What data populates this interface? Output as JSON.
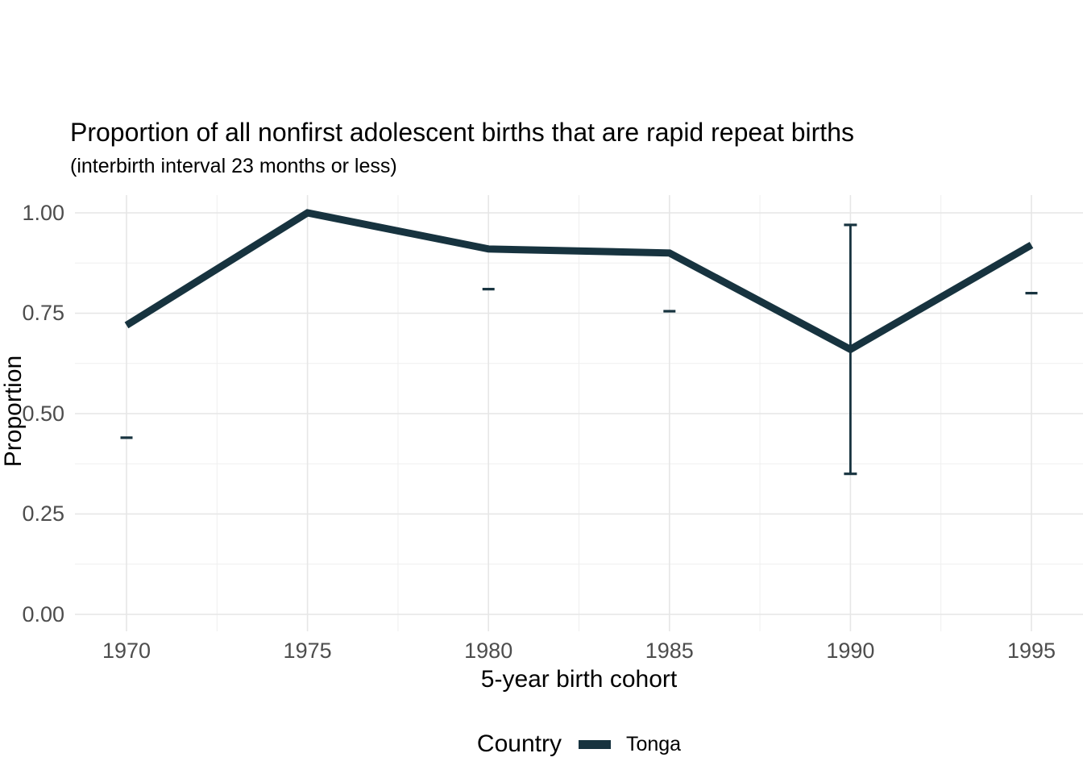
{
  "chart": {
    "title": "Proportion of all nonfirst adolescent births that are rapid repeat births",
    "subtitle": "(interbirth interval 23 months or less)",
    "x_axis_label": "5-year birth cohort",
    "y_axis_label": "Proportion",
    "legend": {
      "title": "Country",
      "entries": [
        {
          "label": "Tonga",
          "color": "#17333f"
        }
      ]
    }
  },
  "chart_data": {
    "type": "line",
    "title": "Proportion of all nonfirst adolescent births that are rapid repeat births",
    "subtitle": "(interbirth interval 23 months or less)",
    "xlabel": "5-year birth cohort",
    "ylabel": "Proportion",
    "x": [
      1970,
      1975,
      1980,
      1985,
      1990,
      1995
    ],
    "x_tick_labels": [
      "1970",
      "1975",
      "1980",
      "1985",
      "1990",
      "1995"
    ],
    "y_ticks": [
      0.0,
      0.25,
      0.5,
      0.75,
      1.0
    ],
    "y_tick_labels": [
      "0.00",
      "0.25",
      "0.50",
      "0.75",
      "1.00"
    ],
    "y_minor_ticks": [
      0.125,
      0.375,
      0.625,
      0.875
    ],
    "ylim": [
      0,
      1
    ],
    "grid": "major+minor",
    "legend_position": "bottom",
    "series": [
      {
        "name": "Tonga",
        "color": "#17333f",
        "values": [
          0.72,
          1.0,
          0.91,
          0.9,
          0.66,
          0.92
        ]
      }
    ],
    "error_marks": [
      {
        "x": 1970,
        "low": 0.44
      },
      {
        "x": 1980,
        "low": 0.81
      },
      {
        "x": 1985,
        "low": 0.755
      },
      {
        "x": 1990,
        "low": 0.35,
        "high": 0.97,
        "has_bar": true
      },
      {
        "x": 1995,
        "low": 0.8
      }
    ],
    "colors": {
      "grid_major": "#e6e6e6",
      "grid_minor": "#efefef",
      "tick_text": "#4d4d4d",
      "title_text": "#000000"
    }
  }
}
